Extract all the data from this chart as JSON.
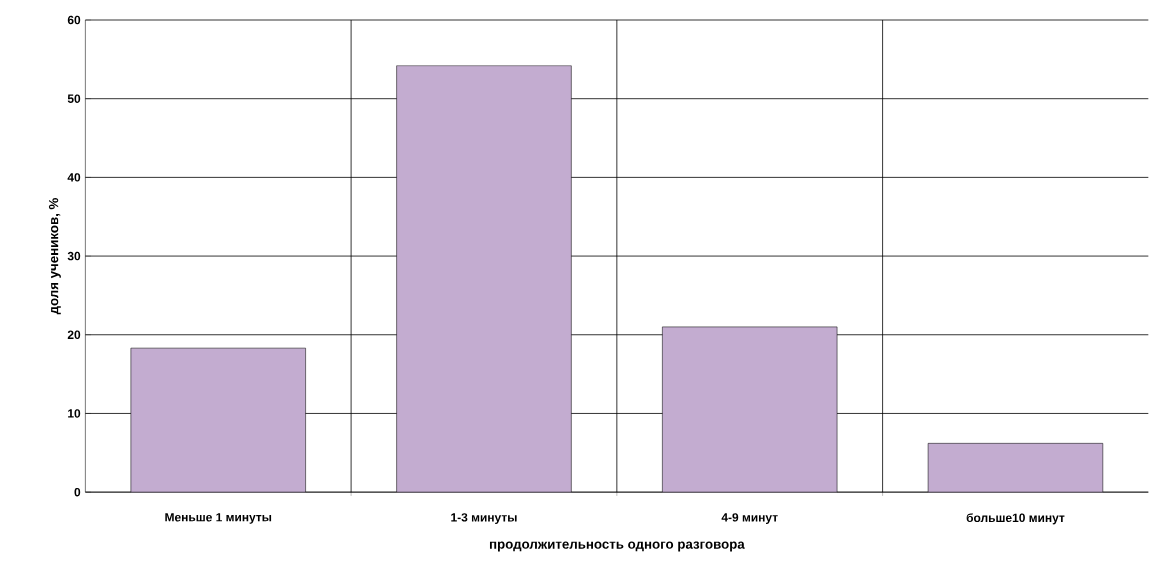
{
  "chart_data": {
    "type": "bar",
    "xlabel": "продолжительность одного разговора",
    "ylabel": "доля учеников, %",
    "categories": [
      "Меньше 1 минуты",
      "1-3 минуты",
      "4-9 минут",
      "больше10 минут"
    ],
    "values": [
      18.3,
      54.2,
      21.0,
      6.2
    ],
    "color": "#c3acd0",
    "ylim": [
      0,
      60
    ],
    "yticks": [
      0,
      10,
      20,
      30,
      40,
      50,
      60
    ],
    "grid": true
  }
}
